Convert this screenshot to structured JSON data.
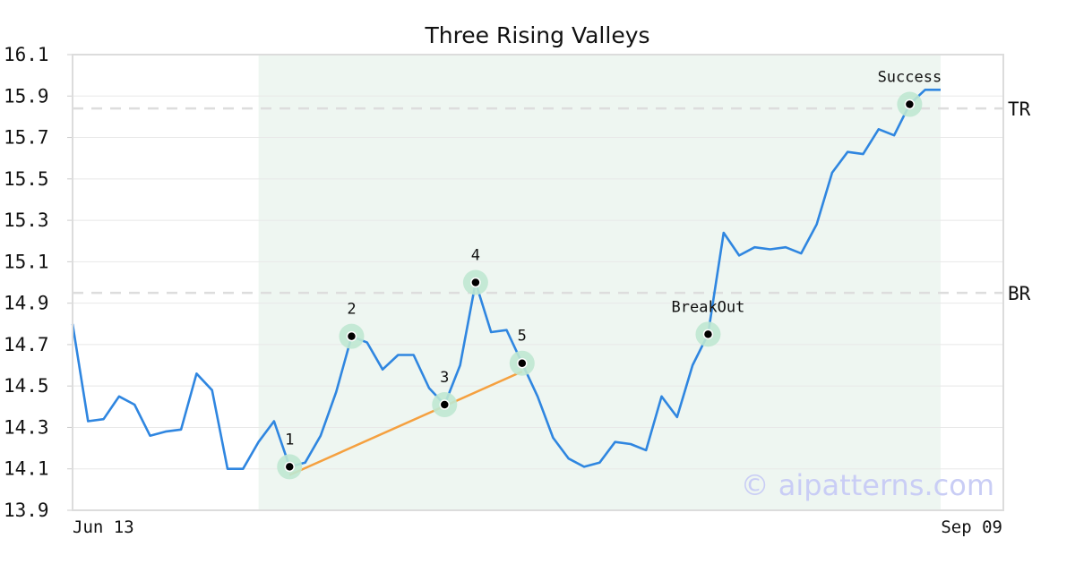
{
  "chart_data": {
    "type": "line",
    "title": "Three Rising Valleys",
    "xlabel": "",
    "ylabel": "",
    "ylim": [
      13.9,
      16.1
    ],
    "yticks": [
      13.9,
      14.1,
      14.3,
      14.5,
      14.7,
      14.9,
      15.1,
      15.3,
      15.5,
      15.7,
      15.9,
      16.1
    ],
    "x_tick_labels": [
      "Jun 13",
      "Sep 09"
    ],
    "grid": true,
    "series": [
      {
        "color": "#2f86e0",
        "values": [
          14.8,
          14.33,
          14.34,
          14.45,
          14.41,
          14.26,
          14.28,
          14.29,
          14.56,
          14.48,
          14.1,
          14.1,
          14.23,
          14.33,
          14.11,
          14.13,
          14.26,
          14.47,
          14.74,
          14.71,
          14.58,
          14.65,
          14.65,
          14.49,
          14.41,
          14.6,
          15.0,
          14.76,
          14.77,
          14.61,
          14.45,
          14.25,
          14.15,
          14.11,
          14.13,
          14.23,
          14.22,
          14.19,
          14.45,
          14.35,
          14.6,
          14.75,
          15.24,
          15.13,
          15.17,
          15.16,
          15.17,
          15.14,
          15.28,
          15.53,
          15.63,
          15.62,
          15.74,
          15.71,
          15.86,
          15.93,
          15.93
        ]
      }
    ],
    "pattern_region": {
      "start_index": 12,
      "end_index": 56,
      "color": "#eef6f1"
    },
    "trendline": {
      "color": "#f5a03f",
      "from": {
        "index": 14,
        "value": 14.07
      },
      "to": {
        "index": 29,
        "value": 14.57
      }
    },
    "levels": [
      {
        "label": "TR",
        "value": 15.84
      },
      {
        "label": "BR",
        "value": 14.95
      }
    ],
    "markers": [
      {
        "label": "1",
        "index": 14,
        "value": 14.11
      },
      {
        "label": "2",
        "index": 18,
        "value": 14.74
      },
      {
        "label": "3",
        "index": 24,
        "value": 14.41
      },
      {
        "label": "4",
        "index": 26,
        "value": 15.0
      },
      {
        "label": "5",
        "index": 29,
        "value": 14.61
      },
      {
        "label": "BreakOut",
        "index": 41,
        "value": 14.75
      },
      {
        "label": "Success",
        "index": 54,
        "value": 15.86
      }
    ],
    "watermark": "© aipatterns.com"
  }
}
